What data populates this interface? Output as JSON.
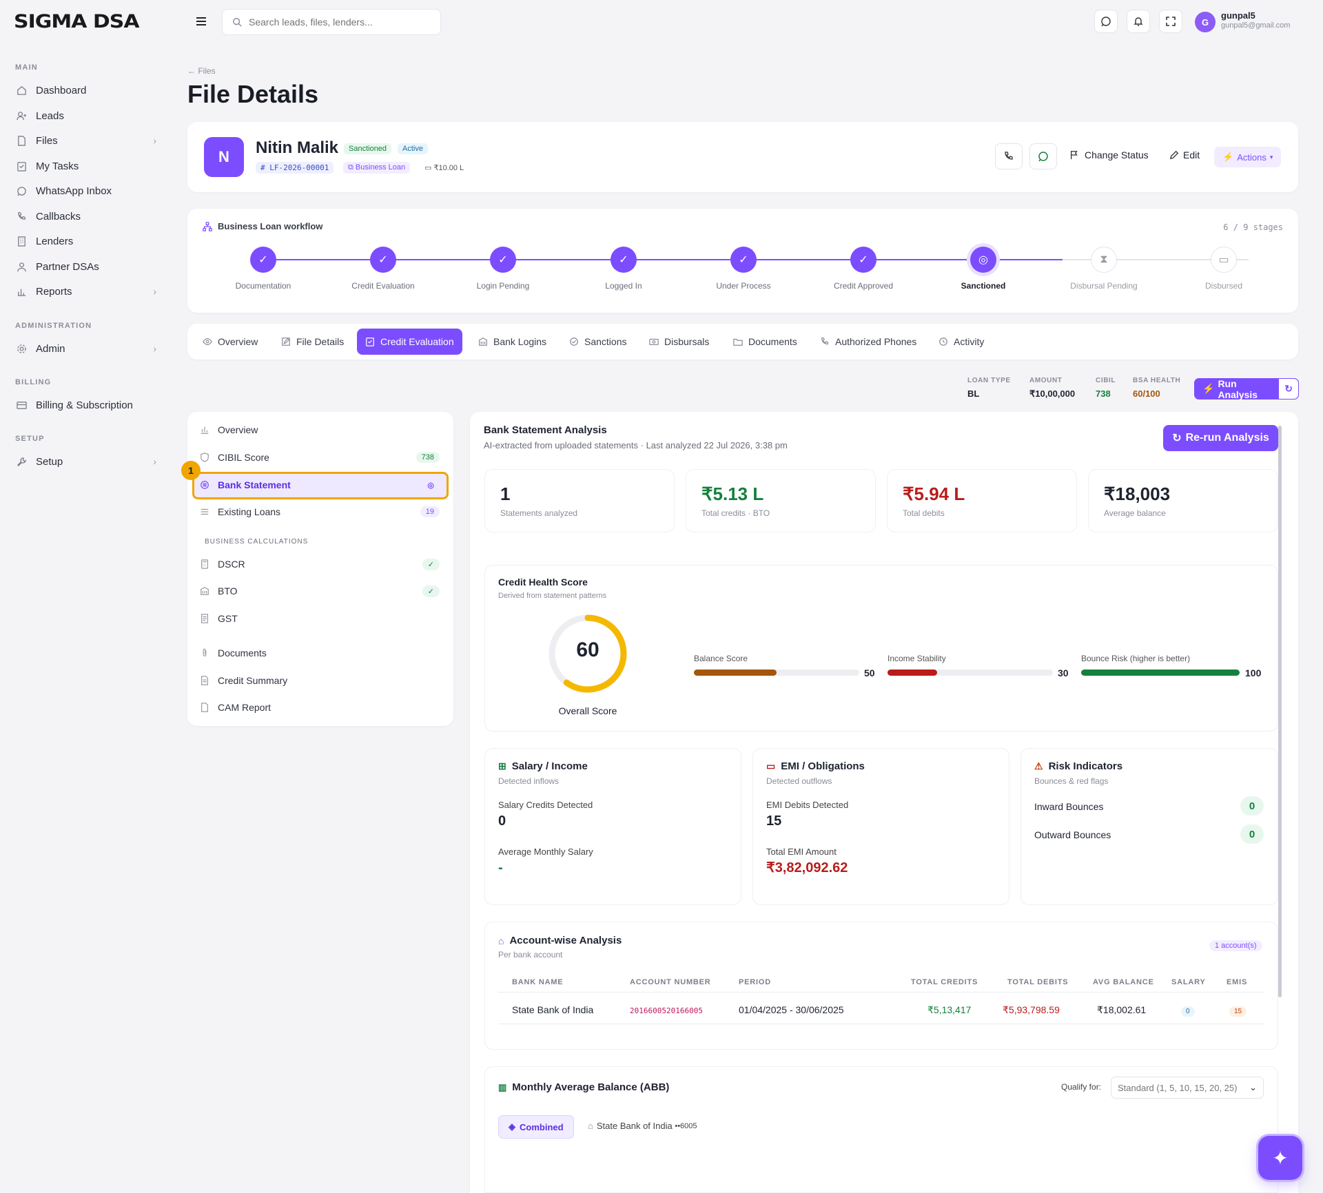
{
  "brand": {
    "logo": "SIGMA DSA"
  },
  "topbar": {
    "search_placeholder": "Search leads, files, lenders...",
    "user_initial": "G",
    "user_name": "gunpal5",
    "user_email": "gunpal5@gmail.com"
  },
  "sidebar": {
    "sections": [
      "MAIN",
      "ADMINISTRATION",
      "BILLING",
      "SETUP"
    ],
    "items": [
      "Dashboard",
      "Leads",
      "Files",
      "My Tasks",
      "WhatsApp Inbox",
      "Callbacks",
      "Lenders",
      "Partner DSAs",
      "Reports",
      "Admin",
      "Billing & Subscription",
      "Setup"
    ]
  },
  "page": {
    "breadcrumb": "Files",
    "title": "File Details"
  },
  "file": {
    "avatar": "N",
    "name": "Nitin Malik",
    "status1": "Sanctioned",
    "status2": "Active",
    "file_id": "LF-2026-00001",
    "loan_type": "Business Loan",
    "amount": "₹10.00 L"
  },
  "actions": {
    "change_status": "Change Status",
    "edit": "Edit",
    "actions": "Actions"
  },
  "workflow": {
    "title": "Business Loan workflow",
    "progress": "6 / 9 stages",
    "stages": [
      "Documentation",
      "Credit Evaluation",
      "Login Pending",
      "Logged In",
      "Under Process",
      "Credit Approved",
      "Sanctioned",
      "Disbursal Pending",
      "Disbursed"
    ]
  },
  "tabs": [
    "Overview",
    "File Details",
    "Credit Evaluation",
    "Bank Logins",
    "Sanctions",
    "Disbursals",
    "Documents",
    "Authorized Phones",
    "Activity"
  ],
  "summary": {
    "loan_type_label": "LOAN TYPE",
    "loan_type": "BL",
    "amount_label": "AMOUNT",
    "amount": "₹10,00,000",
    "cibil_label": "CIBIL",
    "cibil": "738",
    "bsa_label": "BSA HEALTH",
    "bsa": "60/100",
    "run": "Run Analysis"
  },
  "credit_nav": {
    "items": [
      "Overview",
      "CIBIL Score",
      "Bank Statement",
      "Existing Loans"
    ],
    "cibil_badge": "738",
    "loans_badge": "19",
    "step_marker": "1",
    "biz_header": "BUSINESS CALCULATIONS",
    "biz_items": [
      "DSCR",
      "BTO",
      "GST"
    ],
    "more_items": [
      "Documents",
      "Credit Summary",
      "CAM Report"
    ]
  },
  "bsa": {
    "title": "Bank Statement Analysis",
    "subtitle": "AI-extracted from uploaded statements",
    "last": "· Last analyzed 22 Jul 2026, 3:38 pm",
    "rerun": "Re-run Analysis",
    "stats": [
      {
        "value": "1",
        "label": "Statements analyzed"
      },
      {
        "value": "₹5.13 L",
        "label": "Total credits · BTO"
      },
      {
        "value": "₹5.94 L",
        "label": "Total debits"
      },
      {
        "value": "₹18,003",
        "label": "Average balance"
      }
    ]
  },
  "health": {
    "title": "Credit Health Score",
    "subtitle": "Derived from statement patterns",
    "score": "60",
    "score_label": "Overall Score",
    "score_fraction": 0.6,
    "bars": [
      {
        "label": "Balance Score",
        "value": "50",
        "fraction": 0.5,
        "color": "#a4560c"
      },
      {
        "label": "Income Stability",
        "value": "30",
        "fraction": 0.3,
        "color": "#b91c1c"
      },
      {
        "label": "Bounce Risk (higher is better)",
        "value": "100",
        "fraction": 1.0,
        "color": "#15803d"
      }
    ]
  },
  "salary": {
    "title": "Salary / Income",
    "subtitle": "Detected inflows",
    "l1": "Salary Credits Detected",
    "v1": "0",
    "l2": "Average Monthly Salary",
    "v2": "-"
  },
  "emi": {
    "title": "EMI / Obligations",
    "subtitle": "Detected outflows",
    "l1": "EMI Debits Detected",
    "v1": "15",
    "l2": "Total EMI Amount",
    "v2": "₹3,82,092.62"
  },
  "risk": {
    "title": "Risk Indicators",
    "subtitle": "Bounces & red flags",
    "l1": "Inward Bounces",
    "v1": "0",
    "l2": "Outward Bounces",
    "v2": "0"
  },
  "accounts": {
    "title": "Account-wise Analysis",
    "subtitle": "Per bank account",
    "count": "1 account(s)",
    "headers": [
      "BANK NAME",
      "ACCOUNT NUMBER",
      "PERIOD",
      "TOTAL CREDITS",
      "TOTAL DEBITS",
      "AVG BALANCE",
      "SALARY",
      "EMIS"
    ],
    "row": {
      "bank": "State Bank of India",
      "acct": "2016600520166005",
      "period": "01/04/2025 - 30/06/2025",
      "credits": "₹5,13,417",
      "debits": "₹5,93,798.59",
      "avg": "₹18,002.61",
      "salary": "0",
      "emis": "15"
    }
  },
  "abb": {
    "title": "Monthly Average Balance (ABB)",
    "qualify_label": "Qualify for:",
    "qualify_value": "Standard (1, 5, 10, 15, 20, 25)",
    "tab_combined": "Combined",
    "tab_bank": "State Bank of India",
    "tab_bank_suffix": "••6005"
  },
  "colors": {
    "accent": "#7c4dff",
    "green": "#15803d",
    "red": "#b91c1c"
  }
}
